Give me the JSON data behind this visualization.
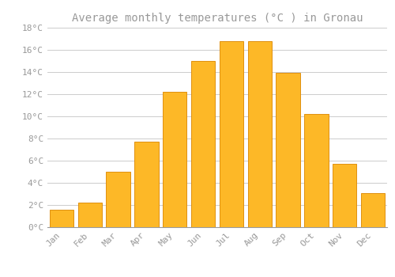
{
  "title": "Average monthly temperatures (°C ) in Gronau",
  "months": [
    "Jan",
    "Feb",
    "Mar",
    "Apr",
    "May",
    "Jun",
    "Jul",
    "Aug",
    "Sep",
    "Oct",
    "Nov",
    "Dec"
  ],
  "values": [
    1.6,
    2.2,
    5.0,
    7.7,
    12.2,
    15.0,
    16.8,
    16.8,
    13.9,
    10.2,
    5.7,
    3.1
  ],
  "bar_color": "#FDB827",
  "bar_edge_color": "#E09010",
  "background_color": "#ffffff",
  "grid_color": "#cccccc",
  "text_color": "#999999",
  "ylim": [
    0,
    18
  ],
  "yticks": [
    0,
    2,
    4,
    6,
    8,
    10,
    12,
    14,
    16,
    18
  ],
  "title_fontsize": 10,
  "tick_fontsize": 8
}
